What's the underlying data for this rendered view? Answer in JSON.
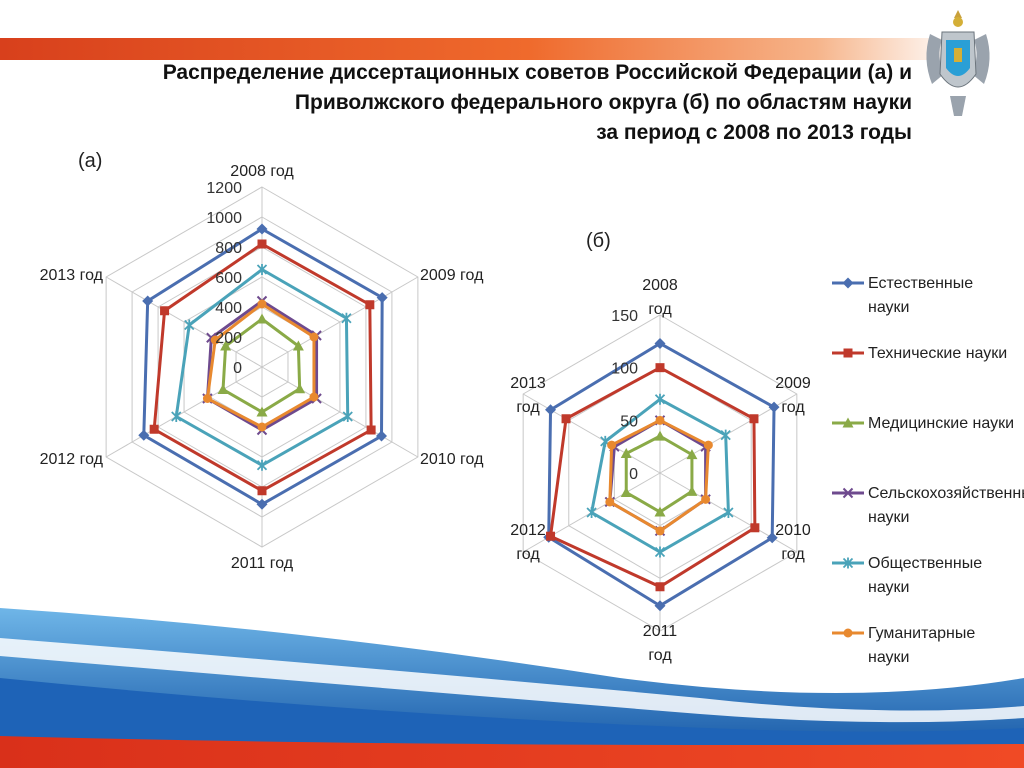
{
  "title": {
    "line1": "Распределение диссертационных советов Российской Федерации (а) и",
    "line2": "Приволжского федерального округа (б) по областям науки",
    "line3": "за период с 2008 по 2013 годы"
  },
  "colors": {
    "series": [
      "#4a6eb0",
      "#c0392b",
      "#8aaa47",
      "#6e4a8e",
      "#4aa3b9",
      "#e8892f"
    ],
    "banner": "#e24a20",
    "wave_blue": "#1e63b7",
    "wave_red": "#e23a22"
  },
  "icons": {
    "emblem": "coat-of-arms-emblem"
  },
  "legend": {
    "items": [
      {
        "label": "Естественные науки",
        "marker": "diamond"
      },
      {
        "label": "Технические науки",
        "marker": "square"
      },
      {
        "label": "Медицинские науки",
        "marker": "triangle"
      },
      {
        "label": "Сельскохозяйственные науки",
        "marker": "cross"
      },
      {
        "label": "Общественные науки",
        "marker": "asterisk"
      },
      {
        "label": "Гуманитарные науки",
        "marker": "circle"
      }
    ]
  },
  "chart_data": [
    {
      "type": "radar",
      "panel_label": "(а)",
      "categories": [
        "2008 год",
        "2009 год",
        "2010 год",
        "2011 год",
        "2012 год",
        "2013 год"
      ],
      "rmax": 1200,
      "ticks": [
        "0",
        "200",
        "400",
        "600",
        "800",
        "1000",
        "1200"
      ],
      "grid": true,
      "series": [
        {
          "name": "Естественные науки",
          "values": [
            920,
            925,
            920,
            915,
            910,
            880
          ]
        },
        {
          "name": "Технические науки",
          "values": [
            820,
            830,
            840,
            825,
            830,
            750
          ]
        },
        {
          "name": "Медицинские науки",
          "values": [
            320,
            280,
            290,
            300,
            300,
            280
          ]
        },
        {
          "name": "Сельскохозяйственные науки",
          "values": [
            440,
            420,
            420,
            420,
            420,
            390
          ]
        },
        {
          "name": "Общественные науки",
          "values": [
            650,
            650,
            660,
            655,
            660,
            560
          ]
        },
        {
          "name": "Гуманитарные науки",
          "values": [
            420,
            400,
            400,
            400,
            420,
            360
          ]
        }
      ]
    },
    {
      "type": "radar",
      "panel_label": "(б)",
      "categories": [
        "2008 год",
        "2009 год",
        "2010 год",
        "2011 год",
        "2012 год",
        "2013 год"
      ],
      "rmax": 150,
      "ticks": [
        "0",
        "50",
        "100",
        "150"
      ],
      "grid": true,
      "series": [
        {
          "name": "Естественные науки",
          "values": [
            123,
            125,
            123,
            126,
            122,
            120
          ]
        },
        {
          "name": "Технические науки",
          "values": [
            100,
            103,
            104,
            108,
            120,
            103
          ]
        },
        {
          "name": "Медицинские науки",
          "values": [
            35,
            35,
            35,
            37,
            37,
            37
          ]
        },
        {
          "name": "Сельскохозяйственные науки",
          "values": [
            50,
            50,
            50,
            55,
            55,
            50
          ]
        },
        {
          "name": "Общественные науки",
          "values": [
            70,
            72,
            75,
            75,
            75,
            60
          ]
        },
        {
          "name": "Гуманитарные науки",
          "values": [
            50,
            53,
            50,
            55,
            55,
            53
          ]
        }
      ]
    }
  ]
}
